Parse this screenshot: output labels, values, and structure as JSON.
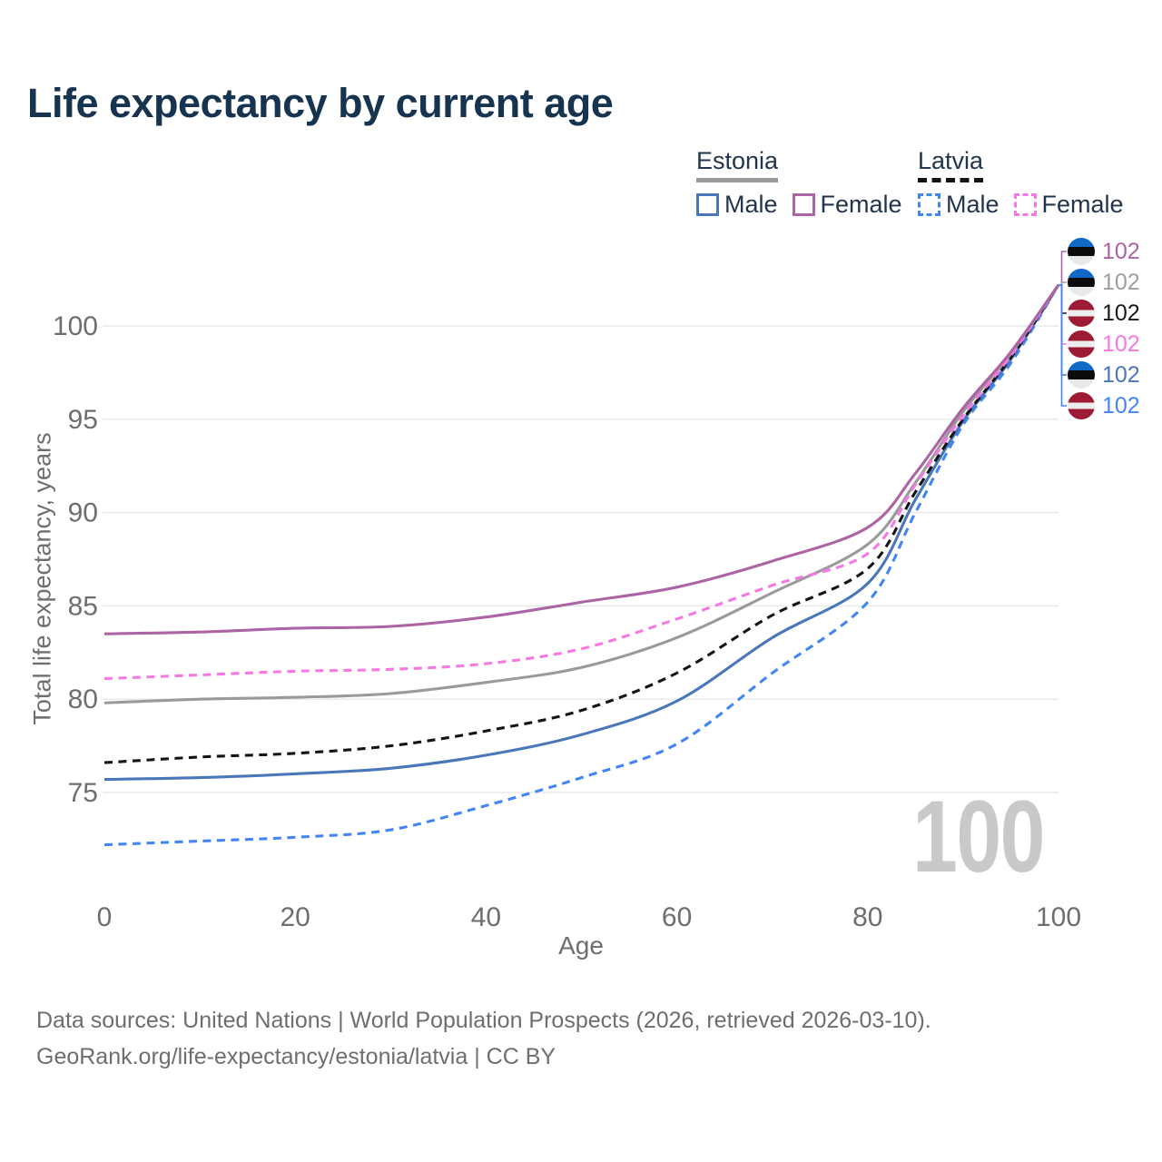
{
  "title": "Life expectancy by current age",
  "legend": {
    "groups": [
      {
        "country": "Estonia",
        "items": [
          {
            "label": "Male"
          },
          {
            "label": "Female"
          }
        ]
      },
      {
        "country": "Latvia",
        "items": [
          {
            "label": "Male"
          },
          {
            "label": "Female"
          }
        ]
      }
    ]
  },
  "watermark": "100",
  "footer": {
    "line1": "Data sources: United Nations | World Population Prospects (2026, retrieved 2026-03-10).",
    "line2": "GeoRank.org/life-expectancy/estonia/latvia | CC BY"
  },
  "chart_data": {
    "type": "line",
    "title": "Life expectancy by current age",
    "xlabel": "Age",
    "ylabel": "Total life expectancy, years",
    "xlim": [
      0,
      100
    ],
    "ylim": [
      70,
      103
    ],
    "x_ticks": [
      0,
      20,
      40,
      60,
      80,
      100
    ],
    "y_ticks": [
      75,
      80,
      85,
      90,
      95,
      100
    ],
    "grid": "horizontal-only",
    "legend_position": "top-right",
    "x": [
      0,
      10,
      20,
      30,
      40,
      50,
      60,
      70,
      80,
      85,
      90,
      95,
      100
    ],
    "series": [
      {
        "key": "latvia_male",
        "name": "Latvia Male",
        "country": "Latvia",
        "sex": "male",
        "line_style": "dashed",
        "color": "#4285f4",
        "values": [
          72.2,
          72.4,
          72.6,
          73.0,
          74.3,
          75.8,
          77.6,
          81.4,
          85.2,
          90.0,
          94.7,
          98.0,
          102.2
        ]
      },
      {
        "key": "estonia_male",
        "name": "Estonia Male",
        "country": "Estonia",
        "sex": "male",
        "line_style": "solid",
        "color": "#4a77b9",
        "values": [
          75.7,
          75.8,
          76.0,
          76.3,
          77.0,
          78.1,
          79.9,
          83.3,
          86.2,
          90.7,
          94.9,
          98.2,
          102.2
        ]
      },
      {
        "key": "latvia_total",
        "name": "Latvia",
        "country": "Latvia",
        "sex": "total",
        "line_style": "dashed",
        "color": "#141414",
        "values": [
          76.6,
          76.9,
          77.1,
          77.5,
          78.3,
          79.4,
          81.4,
          84.5,
          87.0,
          91.1,
          95.0,
          98.3,
          102.2
        ]
      },
      {
        "key": "estonia_total",
        "name": "Estonia",
        "country": "Estonia",
        "sex": "total",
        "line_style": "solid",
        "color": "#9a9a9a",
        "values": [
          79.8,
          80.0,
          80.1,
          80.3,
          80.9,
          81.7,
          83.3,
          85.7,
          88.3,
          91.6,
          95.4,
          98.5,
          102.2
        ]
      },
      {
        "key": "latvia_female",
        "name": "Latvia Female",
        "country": "Latvia",
        "sex": "female",
        "line_style": "dashed",
        "color": "#f678e2",
        "values": [
          81.1,
          81.3,
          81.5,
          81.6,
          81.9,
          82.7,
          84.3,
          86.1,
          87.8,
          91.5,
          95.2,
          98.4,
          102.2
        ]
      },
      {
        "key": "estonia_female",
        "name": "Estonia Female",
        "country": "Estonia",
        "sex": "female",
        "line_style": "solid",
        "color": "#ac64a5",
        "values": [
          83.5,
          83.6,
          83.8,
          83.9,
          84.4,
          85.2,
          86.0,
          87.4,
          89.2,
          92.1,
          95.6,
          98.6,
          102.2
        ]
      }
    ],
    "end_labels": [
      {
        "flag": "estonia",
        "series": "Estonia Female",
        "value": "102",
        "color": "#ac64a5"
      },
      {
        "flag": "estonia",
        "series": "Estonia",
        "value": "102",
        "color": "#9e9e9e"
      },
      {
        "flag": "latvia",
        "series": "Latvia",
        "value": "102",
        "color": "#1a1a1a"
      },
      {
        "flag": "latvia",
        "series": "Latvia Female",
        "value": "102",
        "color": "#f678e2"
      },
      {
        "flag": "estonia",
        "series": "Estonia Male",
        "value": "102",
        "color": "#4a77b9"
      },
      {
        "flag": "latvia",
        "series": "Latvia Male",
        "value": "102",
        "color": "#4285f4"
      }
    ]
  }
}
